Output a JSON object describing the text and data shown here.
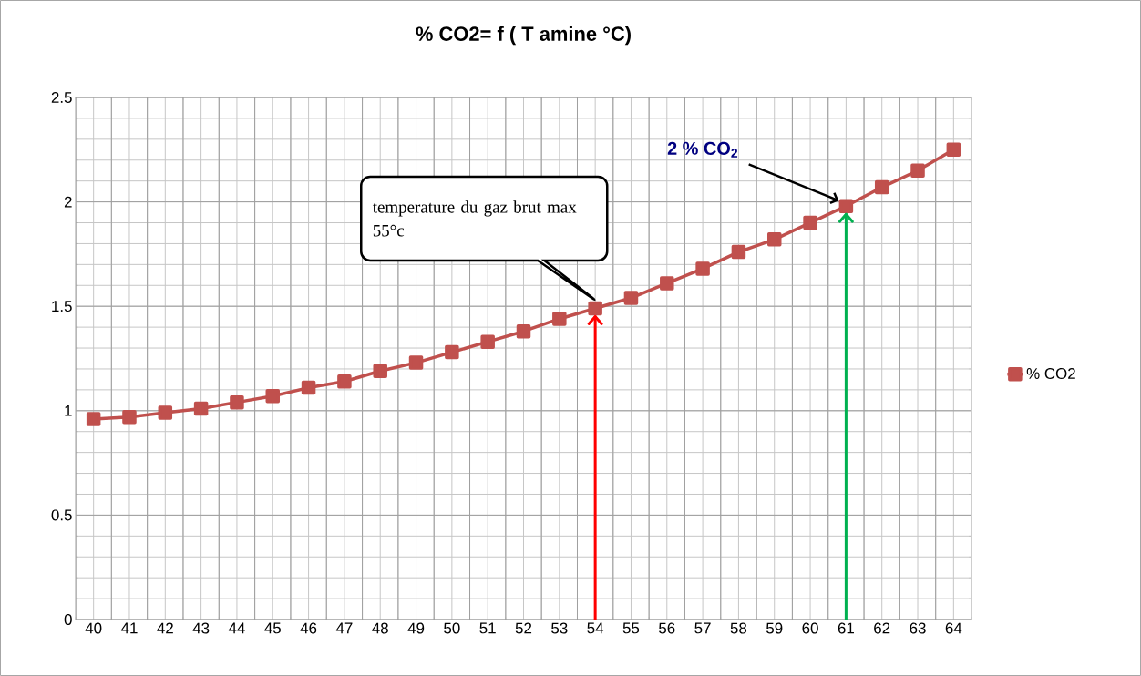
{
  "chart_data": {
    "type": "line",
    "title": "% CO2= f ( T amine °C)",
    "categories": [
      "40",
      "41",
      "42",
      "43",
      "44",
      "45",
      "46",
      "47",
      "48",
      "49",
      "50",
      "51",
      "52",
      "53",
      "54",
      "55",
      "56",
      "57",
      "58",
      "59",
      "60",
      "61",
      "62",
      "63",
      "64"
    ],
    "series": [
      {
        "name": "% CO2",
        "color": "#c0504d",
        "values": [
          0.96,
          0.97,
          0.99,
          1.01,
          1.04,
          1.07,
          1.11,
          1.14,
          1.19,
          1.23,
          1.28,
          1.33,
          1.38,
          1.44,
          1.49,
          1.54,
          1.61,
          1.68,
          1.76,
          1.82,
          1.9,
          1.98,
          2.07,
          2.15,
          2.25
        ]
      }
    ],
    "ylim": [
      0,
      2.5
    ],
    "yticks": [
      0,
      0.5,
      1,
      1.5,
      2,
      2.5
    ],
    "grid": true,
    "legend": "right",
    "marker": "square",
    "line_style": "solid",
    "ref_lines": [
      {
        "axis": "x",
        "value": "54",
        "color": "#ff0000"
      },
      {
        "axis": "x",
        "value": "61",
        "color": "#00b050"
      }
    ],
    "annotations": [
      "temperature du gaz brut max 55°c",
      "2 % CO$_{2}$"
    ]
  }
}
